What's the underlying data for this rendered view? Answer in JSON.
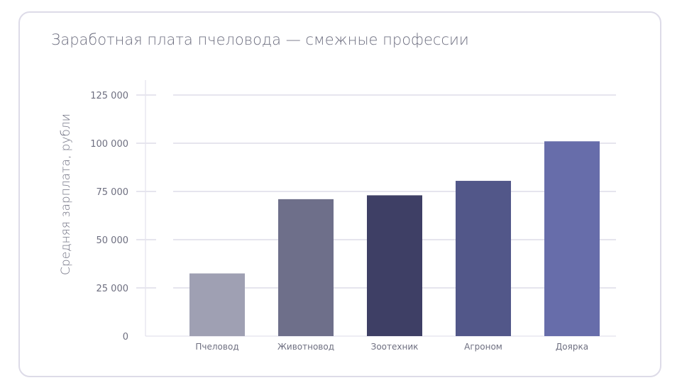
{
  "chart_data": {
    "type": "bar",
    "title": "Заработная плата пчеловода — смежные профессии",
    "xlabel": "",
    "ylabel": "Средняя зарплата, рубли",
    "categories": [
      "Пчеловод",
      "Животновод",
      "Зоотехник",
      "Агроном",
      "Доярка"
    ],
    "values": [
      32500,
      71000,
      73000,
      80500,
      101000
    ],
    "colors": [
      "#9fa0b3",
      "#6e6f8a",
      "#3e3f65",
      "#525789",
      "#676daa"
    ],
    "ylim": [
      0,
      125000
    ],
    "yticks": [
      0,
      25000,
      50000,
      75000,
      100000,
      125000
    ],
    "ytick_labels": [
      "0",
      "25 000",
      "50 000",
      "75 000",
      "100 000",
      "125 000"
    ],
    "grid": true,
    "legend": "none"
  }
}
